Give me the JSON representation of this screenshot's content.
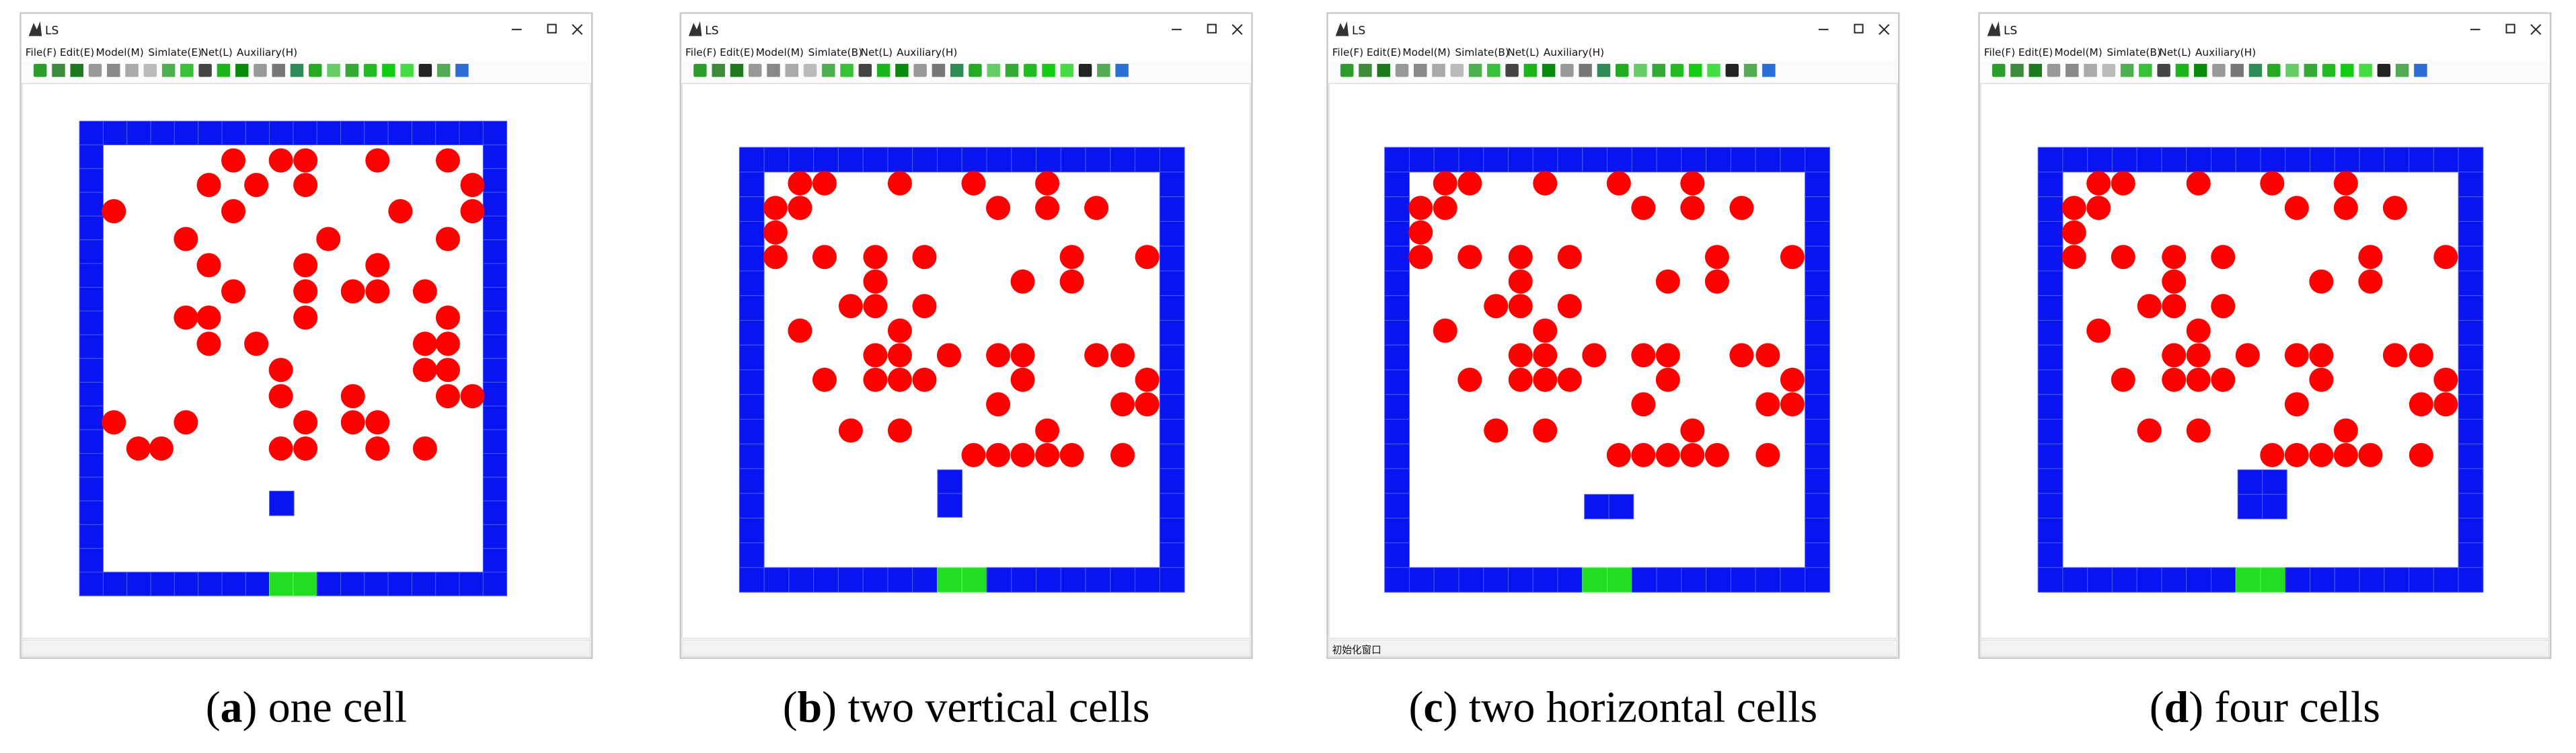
{
  "panels": [
    {
      "window_title": "LS",
      "menu": [
        "File(F)",
        "Edit(E)",
        "Model(M)",
        "Simlate(E)",
        "Net(L)",
        "Auxiliary(H)"
      ],
      "caption": {
        "open": "(",
        "label": "a",
        "text": ") one cell"
      }
    },
    {
      "window_title": "LS",
      "menu": [
        "File(F)",
        "Edit(E)",
        "Model(M)",
        "Simlate(B)",
        "Net(L)",
        "Auxiliary(H)"
      ],
      "caption": {
        "open": "(",
        "label": "b",
        "text": ") two vertical cells"
      }
    },
    {
      "window_title": "LS",
      "menu": [
        "File(F)",
        "Edit(E)",
        "Model(M)",
        "Simlate(B)",
        "Net(L)",
        "Auxiliary(H)"
      ],
      "caption": {
        "open": "(",
        "label": "c",
        "text": ") two horizontal cells"
      },
      "status": "初始化窗口"
    },
    {
      "window_title": "LS",
      "menu": [
        "File(F)",
        "Edit(E)",
        "Model(M)",
        "Simlate(B)",
        "Net(L)",
        "Auxiliary(H)"
      ],
      "caption": {
        "open": "(",
        "label": "d",
        "text": ") four cells"
      }
    }
  ]
}
